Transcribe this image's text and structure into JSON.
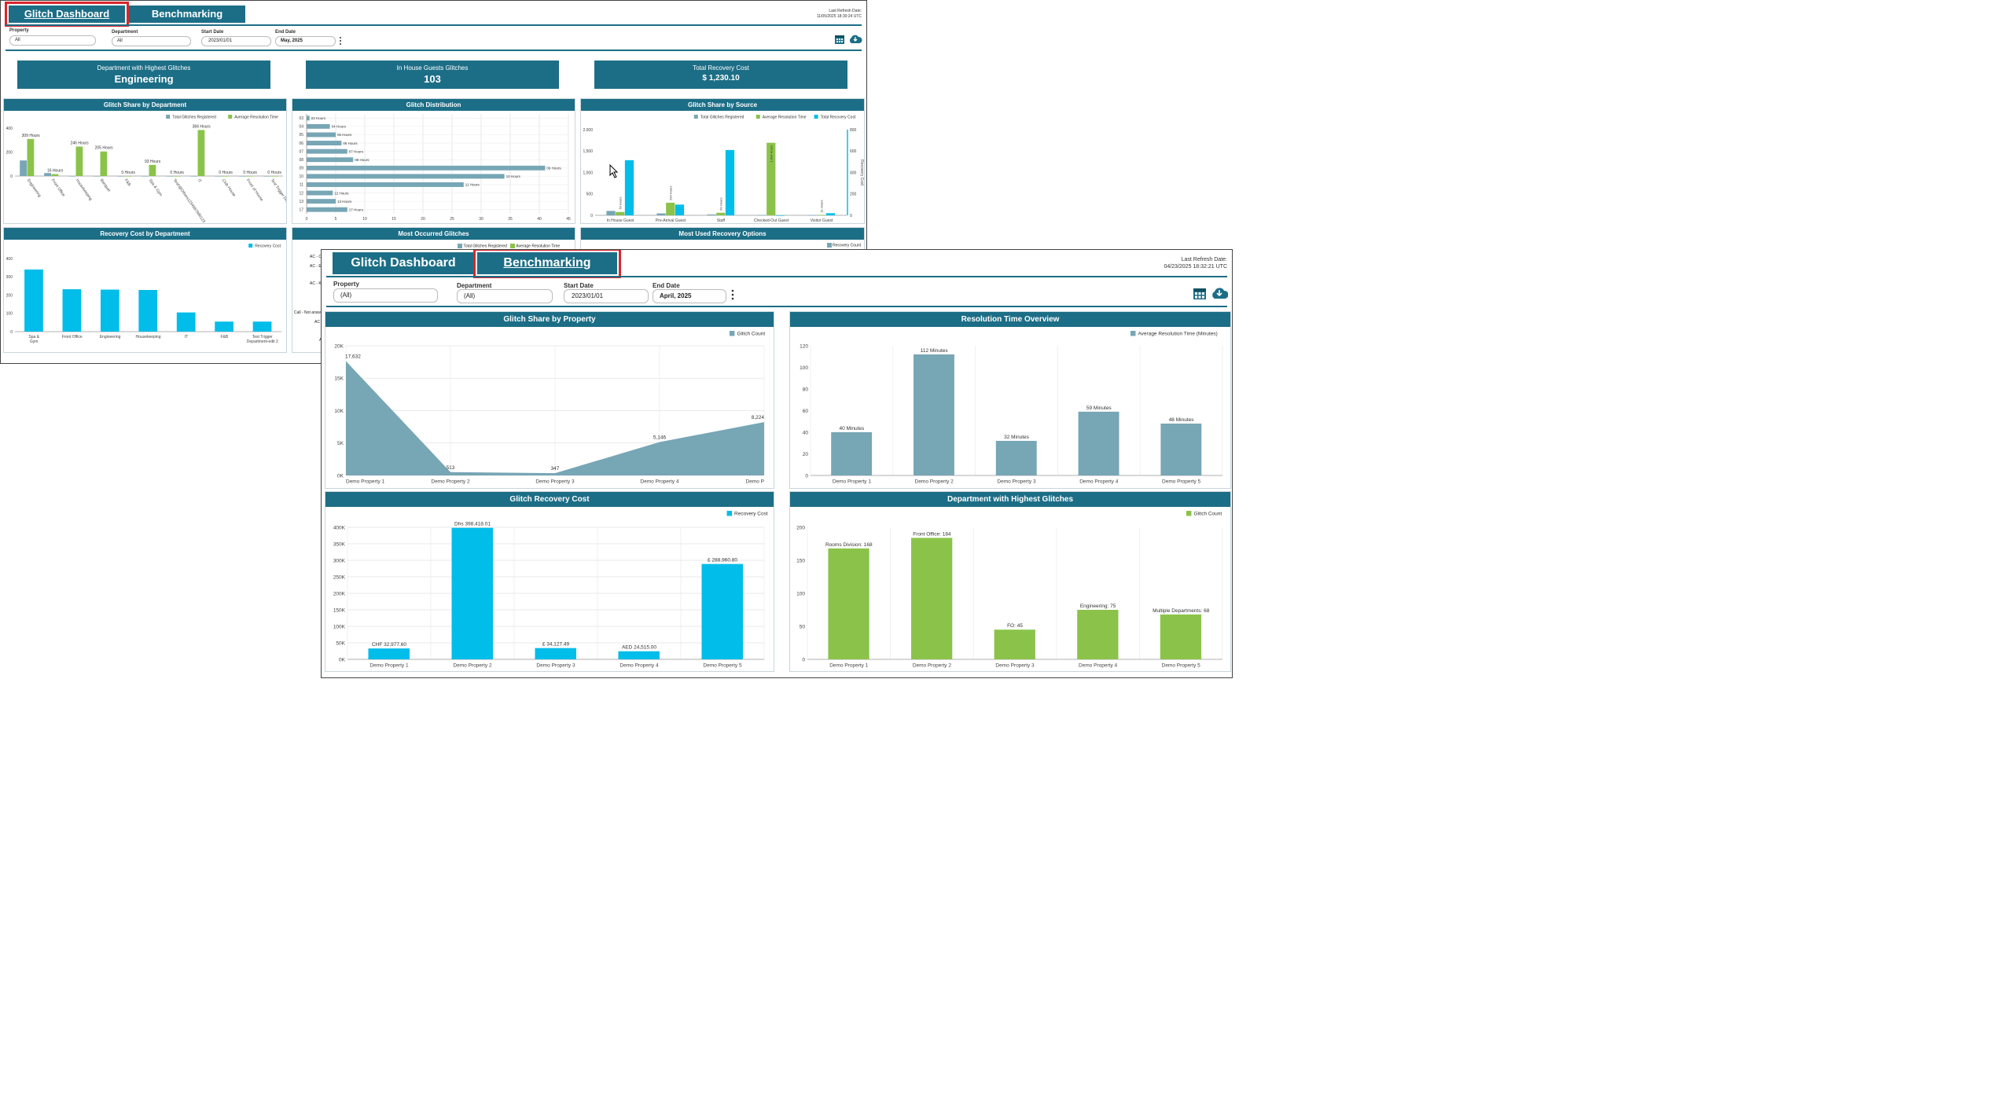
{
  "colors": {
    "teal": "#1c6e86",
    "greyblue": "#77a6b5",
    "green": "#8bc34a",
    "cyan": "#00bdea",
    "red_outline": "#d9262b"
  },
  "back": {
    "tabs": [
      "Glitch Dashboard",
      "Benchmarking"
    ],
    "active_tab": "Glitch Dashboard",
    "refresh_label": "Last Refresh Date:",
    "refresh_value": "11/05/2025 18:30:24 UTC",
    "filters": {
      "property": {
        "label": "Property",
        "value": "All"
      },
      "department": {
        "label": "Department",
        "value": "All"
      },
      "start": {
        "label": "Start Date",
        "value": "2023/01/01"
      },
      "end": {
        "label": "End Date",
        "value": "May, 2025"
      }
    },
    "kpis": [
      {
        "label": "Department with Highest Glitches",
        "value": "Engineering"
      },
      {
        "label": "In House Guests Glitches",
        "value": "103"
      },
      {
        "label": "Total Recovery Cost",
        "value": "$ 1,230.10"
      }
    ],
    "panel_titles": {
      "share_dept": "Glitch Share by Department",
      "distribution": "Glitch Distribution",
      "share_source": "Glitch Share by Source",
      "recovery_dept": "Recovery Cost by Department",
      "most_occurred": "Most Occurred Glitches",
      "most_used": "Most Used Recovery Options"
    },
    "most_occurred_partial": [
      "AC - Co",
      "AC - E",
      "AC - Ke",
      "Call - Not answ",
      "AC -",
      "AC"
    ],
    "most_occurred_legend": [
      "Total Glitches Registered",
      "Average Resolution Time"
    ],
    "most_used_legend": [
      "Recovery Count"
    ]
  },
  "front": {
    "tabs": [
      "Glitch Dashboard",
      "Benchmarking"
    ],
    "active_tab": "Benchmarking",
    "refresh_label": "Last Refresh Date:",
    "refresh_value": "04/23/2025 18:32:21 UTC",
    "filters": {
      "property": {
        "label": "Property",
        "value": "(All)"
      },
      "department": {
        "label": "Department",
        "value": "(All)"
      },
      "start": {
        "label": "Start Date",
        "value": "2023/01/01"
      },
      "end": {
        "label": "End Date",
        "value": "April, 2025"
      }
    },
    "panel_titles": {
      "share_property": "Glitch Share by Property",
      "resolution": "Resolution Time Overview",
      "recovery_cost": "Glitch Recovery Cost",
      "dept_highest": "Department with Highest Glitches"
    }
  },
  "icons": [
    "calendar-icon",
    "cloud-download-icon",
    "more-vert-icon",
    "mouse-cursor-icon"
  ],
  "chart_data": [
    {
      "id": "share_dept",
      "type": "bar",
      "title": "Glitch Share by Department",
      "categories": [
        "Engineering",
        "Front Office",
        "Housekeeping",
        "Banquet",
        "F&B",
        "Spa & Gym",
        "Test!@Others1234567890123...",
        "IT",
        "Club House",
        "Front of House",
        "Test Trigger Department-edit1"
      ],
      "series": [
        {
          "name": "Total Glitches Registered",
          "values": [
            130,
            25,
            0,
            0,
            0,
            0,
            0,
            0,
            0,
            0,
            0
          ]
        },
        {
          "name": "Average Resolution Time",
          "values": [
            309,
            16,
            246,
            205,
            0,
            93,
            0,
            384,
            0,
            0,
            0
          ]
        }
      ],
      "labels": [
        "309 Hours",
        "16 Hours",
        "246 Hours",
        "205 Hours",
        "0 Hours",
        "93 Hours",
        "0 Hours",
        "384 Hours",
        "0 Hours",
        "0 Hours",
        "0 Hours"
      ],
      "ylim": [
        0,
        400
      ],
      "yticks": [
        "0",
        "200",
        "400"
      ],
      "legend": "top-right"
    },
    {
      "id": "distribution",
      "type": "bar",
      "title": "Glitch Distribution",
      "orientation": "horizontal",
      "categories": [
        "03",
        "04",
        "05",
        "06",
        "07",
        "08",
        "09",
        "10",
        "11",
        "12",
        "13",
        "17"
      ],
      "values": [
        0.5,
        4,
        5,
        6,
        7,
        8,
        41,
        34,
        27,
        4.5,
        5,
        7
      ],
      "labels": [
        "03 Hours",
        "04 Hours",
        "05 Hours",
        "06 Hours",
        "07 Hours",
        "08 Hours",
        "09 Hours",
        "10 Hours",
        "11 Hours",
        "12 Hours",
        "13 Hours",
        "17 Hours"
      ],
      "xlim": [
        0,
        45
      ],
      "xticks": [
        "0",
        "5",
        "10",
        "15",
        "20",
        "25",
        "30",
        "35",
        "40",
        "45"
      ]
    },
    {
      "id": "share_source",
      "type": "bar",
      "title": "Glitch Share by Source",
      "categories": [
        "In House Guest",
        "Pre-Arrival Guest",
        "Staff",
        "Checked-Out Guest",
        "Visitor Guest"
      ],
      "series": [
        {
          "name": "Total Glitches Registered",
          "values": [
            103,
            45,
            20,
            5,
            5
          ]
        },
        {
          "name": "Average Resolution Time",
          "values": [
            78,
            294,
            60,
            1694,
            11
          ]
        },
        {
          "name": "Total Recovery Cost",
          "values": [
            515,
            100,
            610,
            0,
            20
          ]
        }
      ],
      "labels": [
        "78 Hours",
        "294 Hours",
        "60 Hours",
        "1,694 Hours",
        "11 Hours"
      ],
      "ylim": [
        0,
        2000
      ],
      "yticks": [
        "0",
        "500",
        "1,000",
        "1,500",
        "2,000"
      ],
      "y2lim": [
        0,
        800
      ],
      "y2ticks": [
        "0",
        "200",
        "400",
        "600",
        "800"
      ],
      "y2label": "Recovery Cost",
      "legend": "top-right"
    },
    {
      "id": "recovery_dept",
      "type": "bar",
      "title": "Recovery Cost by Department",
      "categories": [
        "Spa & Gym",
        "Front Office",
        "Engineering",
        "Housekeeping",
        "IT",
        "F&B",
        "Test Trigger Department-edit 2"
      ],
      "series": [
        {
          "name": "Recovery Cost",
          "values": [
            340,
            232,
            230,
            228,
            105,
            55,
            55
          ]
        }
      ],
      "ylim": [
        0,
        400
      ],
      "yticks": [
        "0",
        "100",
        "200",
        "300",
        "400"
      ],
      "legend": "top-right"
    },
    {
      "id": "share_property",
      "type": "area",
      "title": "Glitch Share by Property",
      "categories": [
        "Demo Property 1",
        "Demo Property 2",
        "Demo Property 3",
        "Demo Property 4",
        "Demo P"
      ],
      "series": [
        {
          "name": "Glitch Count",
          "values": [
            17632,
            513,
            347,
            5146,
            8224
          ]
        }
      ],
      "labels": [
        "17,632",
        "513",
        "347",
        "5,146",
        "8,224"
      ],
      "ylim": [
        0,
        20000
      ],
      "yticks": [
        "0K",
        "5K",
        "10K",
        "15K",
        "20K"
      ],
      "legend": "top-right"
    },
    {
      "id": "resolution",
      "type": "bar",
      "title": "Resolution Time Overview",
      "categories": [
        "Demo Property 1",
        "Demo Property 2",
        "Demo Property 3",
        "Demo Property 4",
        "Demo Property 5"
      ],
      "series": [
        {
          "name": "Average Resolution Time (Minutes)",
          "values": [
            40,
            112,
            32,
            59,
            48
          ]
        }
      ],
      "labels": [
        "40 Minutes",
        "112 Minutes",
        "32 Minutes",
        "59 Minutes",
        "48 Minutes"
      ],
      "ylim": [
        0,
        120
      ],
      "yticks": [
        "0",
        "20",
        "40",
        "60",
        "80",
        "100",
        "120"
      ],
      "legend": "top-right"
    },
    {
      "id": "recovery_cost",
      "type": "bar",
      "title": "Glitch Recovery Cost",
      "categories": [
        "Demo Property 1",
        "Demo Property 2",
        "Demo Property 3",
        "Demo Property 4",
        "Demo Property 5"
      ],
      "series": [
        {
          "name": "Recovery Cost",
          "values": [
            32977.6,
            398418.01,
            34127.49,
            24515.0,
            288960.8
          ]
        }
      ],
      "labels": [
        "CHF 32,977.60",
        "Dhs 398,418.01",
        "£ 34,127.49",
        "AED 24,515.00",
        "£ 288,960.80"
      ],
      "ylim": [
        0,
        400000
      ],
      "yticks": [
        "0K",
        "50K",
        "100K",
        "150K",
        "200K",
        "250K",
        "300K",
        "350K",
        "400K"
      ],
      "legend": "top-right"
    },
    {
      "id": "dept_highest",
      "type": "bar",
      "title": "Department with Highest Glitches",
      "categories": [
        "Demo Property 1",
        "Demo Property 2",
        "Demo Property 3",
        "Demo Property 4",
        "Demo Property 5"
      ],
      "series": [
        {
          "name": "Glitch Count",
          "values": [
            168,
            184,
            45,
            75,
            68
          ]
        }
      ],
      "labels": [
        "Rooms Division: 168",
        "Front Office: 184",
        "FO: 45",
        "Engineering: 75",
        "Multiple Departments: 68"
      ],
      "ylim": [
        0,
        200
      ],
      "yticks": [
        "0",
        "50",
        "100",
        "150",
        "200"
      ],
      "legend": "top-right"
    }
  ]
}
